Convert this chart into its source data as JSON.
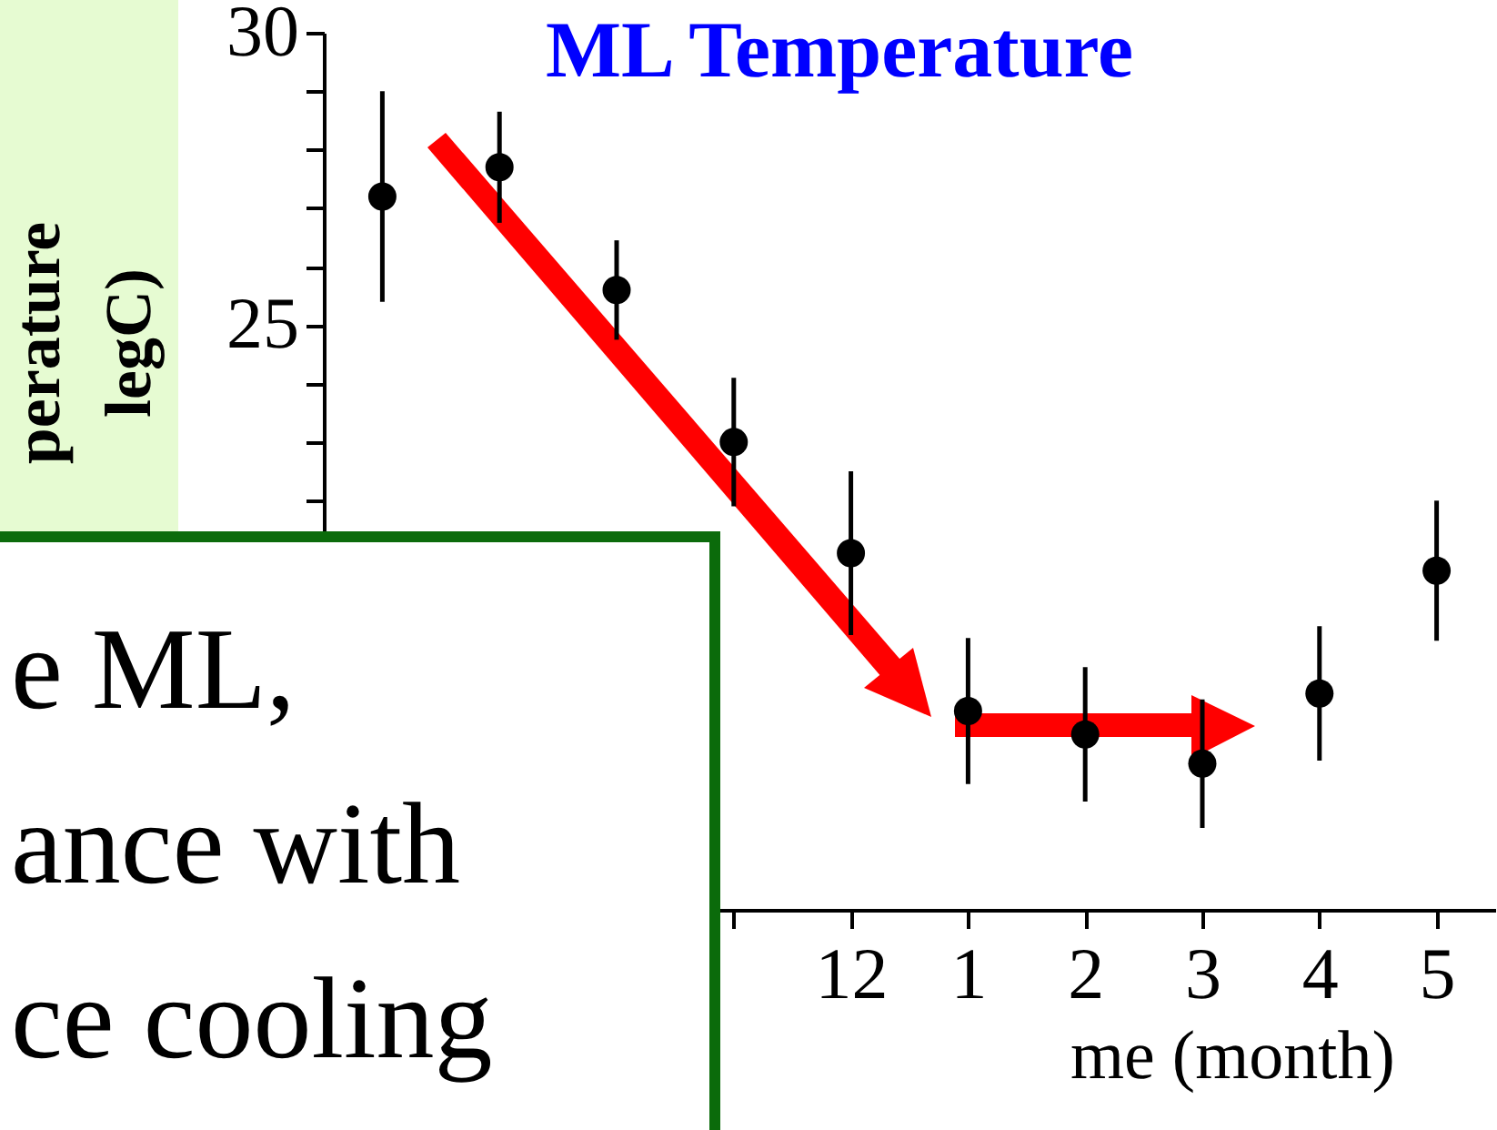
{
  "chart_data": {
    "type": "scatter",
    "title": "ML Temperature",
    "xlabel": "me (month)",
    "ylabel": "perature\nlegC)",
    "categories": [
      null,
      null,
      null,
      null,
      "12",
      "1",
      "2",
      "3",
      "4",
      "5"
    ],
    "values": [
      27.2,
      27.7,
      25.6,
      23.0,
      21.1,
      18.4,
      18.0,
      17.5,
      18.7,
      20.8
    ],
    "errors": [
      1.8,
      0.95,
      0.85,
      1.1,
      1.4,
      1.25,
      1.15,
      1.1,
      1.15,
      1.2
    ],
    "color": "#000000",
    "marker": "circle",
    "ylim": [
      15,
      30
    ],
    "yticks": [
      {
        "value": 15,
        "label": null
      },
      {
        "value": 16,
        "label": null
      },
      {
        "value": 17,
        "label": null
      },
      {
        "value": 18,
        "label": null
      },
      {
        "value": 19,
        "label": null
      },
      {
        "value": 20,
        "label": null
      },
      {
        "value": 21,
        "label": null
      },
      {
        "value": 22,
        "label": null
      },
      {
        "value": 23,
        "label": null
      },
      {
        "value": 24,
        "label": null
      },
      25,
      {
        "value": 26,
        "label": null
      },
      {
        "value": 27,
        "label": null
      },
      {
        "value": 28,
        "label": null
      },
      {
        "value": 29,
        "label": null
      },
      30
    ],
    "annotations": [
      "e ML,",
      "ance with",
      "ce cooling"
    ]
  }
}
